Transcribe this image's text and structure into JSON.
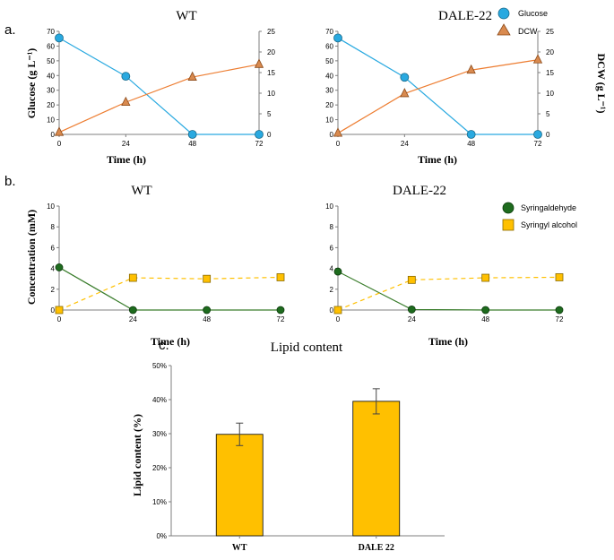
{
  "colors": {
    "glucose": "#29a9e0",
    "dcw": "#ed7d31",
    "dcw_marker": "#d98a4f",
    "syringaldehyde": "#1e6b1e",
    "syringaldehyde_line": "#3a7d2c",
    "syringyl": "#ffc000",
    "bar": "#ffc000"
  },
  "panel_labels": {
    "a": "a.",
    "b": "b.",
    "c": "c."
  },
  "chart_data": [
    {
      "id": "a_wt",
      "type": "line",
      "title": "WT",
      "xlabel": "Time (h)",
      "ylabel": "Glucose (g L⁻¹)",
      "x": [
        0,
        24,
        48,
        72
      ],
      "ylim": [
        0,
        70
      ],
      "yticks": [
        0,
        10,
        20,
        30,
        40,
        50,
        60,
        70
      ],
      "y2lim": [
        0,
        25
      ],
      "y2ticks": [
        0,
        5,
        10,
        15,
        20,
        25
      ],
      "series": [
        {
          "name": "Glucose",
          "axis": "left",
          "values": [
            65.5,
            39.5,
            0,
            0
          ]
        },
        {
          "name": "DCW",
          "axis": "right",
          "values": [
            0.5,
            7.8,
            13.9,
            17.0
          ]
        }
      ]
    },
    {
      "id": "a_dale",
      "type": "line",
      "title": "DALE-22",
      "xlabel": "Time (h)",
      "y2label": "DCW (g L⁻¹)",
      "x": [
        0,
        24,
        48,
        72
      ],
      "ylim": [
        0,
        70
      ],
      "yticks": [
        0,
        10,
        20,
        30,
        40,
        50,
        60,
        70
      ],
      "y2lim": [
        0,
        25
      ],
      "y2ticks": [
        0,
        5,
        10,
        15,
        20,
        25
      ],
      "series": [
        {
          "name": "Glucose",
          "axis": "left",
          "values": [
            65.5,
            38.8,
            0,
            0
          ]
        },
        {
          "name": "DCW",
          "axis": "right",
          "values": [
            0.3,
            9.9,
            15.6,
            18.1
          ]
        }
      ],
      "legend": [
        "Glucose",
        "DCW"
      ]
    },
    {
      "id": "b_wt",
      "type": "line",
      "title": "WT",
      "xlabel": "Time (h)",
      "ylabel": "Concentration (mM)",
      "x": [
        0,
        24,
        48,
        72
      ],
      "ylim": [
        0,
        10
      ],
      "yticks": [
        0,
        2,
        4,
        6,
        8,
        10
      ],
      "series": [
        {
          "name": "Syringaldehyde",
          "values": [
            4.1,
            0,
            0,
            0
          ]
        },
        {
          "name": "Syringyl alcohol",
          "values": [
            0,
            3.1,
            3.0,
            3.15
          ]
        }
      ]
    },
    {
      "id": "b_dale",
      "type": "line",
      "title": "DALE-22",
      "xlabel": "Time (h)",
      "x": [
        0,
        24,
        48,
        72
      ],
      "ylim": [
        0,
        10
      ],
      "yticks": [
        0,
        2,
        4,
        6,
        8,
        10
      ],
      "series": [
        {
          "name": "Syringaldehyde",
          "values": [
            3.7,
            0.05,
            0,
            0
          ]
        },
        {
          "name": "Syringyl alcohol",
          "values": [
            0,
            2.9,
            3.1,
            3.15
          ]
        }
      ],
      "legend": [
        "Syringaldehyde",
        "Syringyl alcohol"
      ]
    },
    {
      "id": "c",
      "type": "bar",
      "title": "Lipid content",
      "ylabel": "Lipid content (%)",
      "categories": [
        "WT",
        "DALE 22"
      ],
      "values": [
        29.8,
        39.5
      ],
      "errors": [
        3.3,
        3.7
      ],
      "ylim": [
        0,
        50
      ],
      "yticks": [
        "0%",
        "10%",
        "20%",
        "30%",
        "40%",
        "50%"
      ]
    }
  ]
}
